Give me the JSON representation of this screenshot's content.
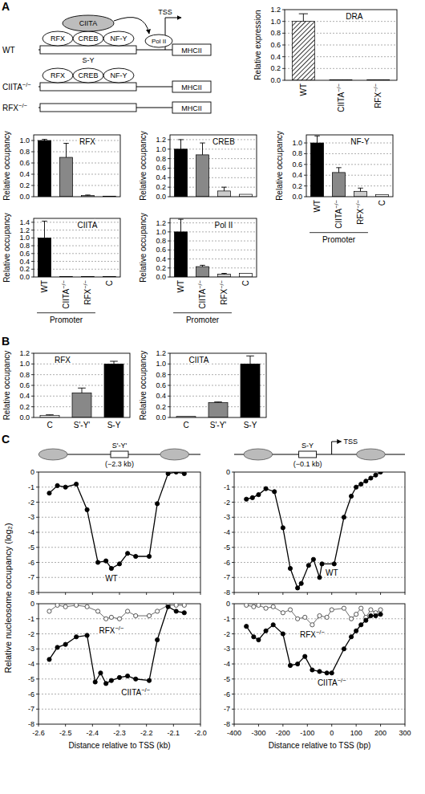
{
  "panel_labels": [
    "A",
    "B",
    "C"
  ],
  "diagram_a": {
    "rows": [
      {
        "label": "WT",
        "factors": [
          "RFX",
          "CREB",
          "NF-Y"
        ],
        "coactivator": "CIITA",
        "polymerase": "Pol II",
        "tss": "TSS",
        "element": "S-Y",
        "gene": "MHCII"
      },
      {
        "label": "CIITA−/−",
        "factors": [
          "RFX",
          "CREB",
          "NF-Y"
        ],
        "gene": "MHCII"
      },
      {
        "label": "RFX−/−",
        "gene": "MHCII"
      }
    ]
  },
  "diagram_c": [
    {
      "element": "S'-Y'",
      "position": "(−2.3 kb)"
    },
    {
      "element": "S-Y",
      "position": "(−0.1 kb)",
      "tss": "TSS"
    }
  ],
  "chart_data": [
    {
      "type": "bar",
      "title": "DRA",
      "ylabel": "Relative expression",
      "categories": [
        "WT",
        "CIITA−/−",
        "RFX−/−"
      ],
      "values": [
        1.0,
        0.01,
        0.01
      ],
      "errors": [
        0.13,
        null,
        null
      ],
      "colors": [
        "#000000",
        "#000000",
        "#000000"
      ],
      "ylim": [
        0,
        1.2
      ],
      "yticks": [
        {
          "value": 0,
          "label": "0.0"
        },
        0.2,
        0.4,
        0.6,
        0.8,
        {
          "value": 1,
          "label": "1.0"
        },
        1.2
      ],
      "grid": true
    },
    {
      "type": "bar",
      "title": "RFX",
      "ylabel": "Relative occupancy",
      "categories": [
        "WT",
        "CIITA−/−",
        "RFX−/−",
        "C"
      ],
      "values": [
        1.0,
        0.7,
        0.02,
        0.01
      ],
      "errors": [
        0.02,
        0.25,
        0.01,
        null
      ],
      "colors": [
        "#000000",
        "#888888",
        "#cccccc",
        "#ffffff"
      ],
      "ylim": [
        0,
        1.1
      ],
      "yticks": [
        {
          "value": 0,
          "label": "0.0"
        },
        0.2,
        0.4,
        0.6,
        0.8,
        {
          "value": 1,
          "label": "1.0"
        }
      ],
      "grid": true,
      "tick_labels": "y"
    },
    {
      "type": "bar",
      "title": "CREB",
      "ylabel": "Relative occupancy",
      "categories": [
        "WT",
        "CIITA−/−",
        "RFX−/−",
        "C"
      ],
      "values": [
        1.0,
        0.88,
        0.12,
        0.05
      ],
      "errors": [
        0.2,
        0.25,
        0.08,
        null
      ],
      "colors": [
        "#000000",
        "#888888",
        "#cccccc",
        "#ffffff"
      ],
      "ylim": [
        0,
        1.3
      ],
      "yticks": [
        {
          "value": 0,
          "label": "0.0"
        },
        0.2,
        0.4,
        0.6,
        0.8,
        {
          "value": 1,
          "label": "1.0"
        },
        1.2
      ],
      "grid": true,
      "tick_labels": "y"
    },
    {
      "type": "bar",
      "title": "NF-Y",
      "ylabel": "Relative occupancy",
      "xlabel": "Promoter",
      "categories": [
        "WT",
        "CIITA−/−",
        "RFX−/−",
        "C"
      ],
      "values": [
        1.0,
        0.45,
        0.1,
        0.04
      ],
      "errors": [
        0.13,
        0.09,
        0.06,
        null
      ],
      "colors": [
        "#000000",
        "#888888",
        "#cccccc",
        "#ffffff"
      ],
      "ylim": [
        0,
        1.15
      ],
      "yticks": [
        {
          "value": 0,
          "label": "0.0"
        },
        0.2,
        0.4,
        0.6,
        0.8,
        {
          "value": 1,
          "label": "1.0"
        }
      ],
      "grid": true
    },
    {
      "type": "bar",
      "title": "CIITA",
      "ylabel": "Relative occupancy",
      "xlabel": "Promoter",
      "categories": [
        "WT",
        "CIITA−/−",
        "RFX−/−",
        "C"
      ],
      "values": [
        1.0,
        0.01,
        0.01,
        0.01
      ],
      "errors": [
        0.43,
        null,
        null,
        null
      ],
      "colors": [
        "#000000",
        "#888888",
        "#cccccc",
        "#ffffff"
      ],
      "ylim": [
        0,
        1.5
      ],
      "yticks": [
        {
          "value": 0,
          "label": "0.0"
        },
        0.2,
        0.4,
        0.6,
        0.8,
        {
          "value": 1,
          "label": "1.0"
        },
        1.2,
        1.4
      ],
      "grid": true
    },
    {
      "type": "bar",
      "title": "Pol II",
      "ylabel": "Relative occupancy",
      "xlabel": "Promoter",
      "categories": [
        "WT",
        "CIITA−/−",
        "RFX−/−",
        "C"
      ],
      "values": [
        1.0,
        0.23,
        0.06,
        0.08
      ],
      "errors": [
        0.28,
        0.03,
        0.02,
        null
      ],
      "colors": [
        "#000000",
        "#888888",
        "#cccccc",
        "#ffffff"
      ],
      "ylim": [
        0,
        1.3
      ],
      "yticks": [
        {
          "value": 0,
          "label": "0.0"
        },
        0.2,
        0.4,
        0.6,
        0.8,
        {
          "value": 1,
          "label": "1.0"
        },
        1.2
      ],
      "grid": true
    },
    {
      "type": "bar",
      "title": "RFX",
      "ylabel": "Relative occupancy",
      "categories": [
        "C",
        "S'-Y'",
        "S-Y"
      ],
      "values": [
        0.04,
        0.46,
        1.0
      ],
      "errors": [
        0.01,
        0.09,
        0.05
      ],
      "colors": [
        "#ffffff",
        "#888888",
        "#000000"
      ],
      "ylim": [
        0,
        1.2
      ],
      "yticks": [
        {
          "value": 0,
          "label": "0.0"
        },
        0.2,
        0.4,
        0.6,
        0.8,
        {
          "value": 1,
          "label": "1.0"
        },
        1.2
      ],
      "grid": true
    },
    {
      "type": "bar",
      "title": "CIITA",
      "ylabel": "Relative occupancy",
      "categories": [
        "C",
        "S'-Y'",
        "S-Y"
      ],
      "values": [
        0.02,
        0.28,
        1.0
      ],
      "errors": [
        null,
        0.01,
        0.15
      ],
      "colors": [
        "#ffffff",
        "#888888",
        "#000000"
      ],
      "ylim": [
        0,
        1.2
      ],
      "yticks": [
        {
          "value": 0,
          "label": "0.0"
        },
        0.2,
        0.4,
        0.6,
        0.8,
        {
          "value": 1,
          "label": "1.0"
        },
        1.2
      ],
      "grid": true
    },
    {
      "type": "line",
      "ylabel": "Relative nucleosome occupancy (log₂)",
      "xlim": [
        -2.6,
        -2.0
      ],
      "xticks": [
        -2.6,
        -2.5,
        -2.4,
        -2.3,
        -2.2,
        -2.1,
        {
          "value": -2,
          "label": "-2.0"
        }
      ],
      "ylim": [
        -8,
        0
      ],
      "yticks": [
        -8,
        -7,
        -6,
        -5,
        -4,
        -3,
        -2,
        -1,
        0
      ],
      "grid": true,
      "tick_labels": "y",
      "series": [
        {
          "name": "WT",
          "color": "#000000",
          "marker": "filled",
          "x": [
            -2.56,
            -2.53,
            -2.5,
            -2.46,
            -2.42,
            -2.38,
            -2.35,
            -2.33,
            -2.3,
            -2.27,
            -2.24,
            -2.19,
            -2.16,
            -2.12,
            -2.09,
            -2.06
          ],
          "values": [
            -1.4,
            -0.9,
            -1.0,
            -0.8,
            -2.5,
            -6.0,
            -5.9,
            -6.4,
            -6.1,
            -5.4,
            -5.6,
            -5.6,
            -2.1,
            -0.1,
            0,
            -0.1
          ]
        }
      ]
    },
    {
      "type": "line",
      "xlim": [
        -400,
        300
      ],
      "xticks": [
        -400,
        -300,
        -200,
        -100,
        0,
        100,
        200,
        300
      ],
      "ylim": [
        -8,
        0
      ],
      "yticks": [
        -8,
        -7,
        -6,
        -5,
        -4,
        -3,
        -2,
        -1,
        0
      ],
      "grid": true,
      "tick_labels": "y",
      "series": [
        {
          "name": "WT",
          "color": "#000000",
          "marker": "filled",
          "x": [
            -350,
            -325,
            -300,
            -270,
            -235,
            -200,
            -170,
            -140,
            -125,
            -95,
            -75,
            -50,
            -40,
            10,
            50,
            80,
            100,
            120,
            140,
            160,
            180,
            200
          ],
          "values": [
            -1.8,
            -1.7,
            -1.5,
            -1.1,
            -1.3,
            -3.7,
            -6.4,
            -7.7,
            -7.4,
            -6.2,
            -5.8,
            -7.0,
            -6.1,
            -6.1,
            -3.0,
            -1.6,
            -1.0,
            -0.8,
            -0.6,
            -0.4,
            -0.2,
            0
          ]
        }
      ]
    },
    {
      "type": "line",
      "xlabel": "Distance relative to TSS (kb)",
      "xlim": [
        -2.6,
        -2.0
      ],
      "xticks": [
        -2.6,
        -2.5,
        -2.4,
        -2.3,
        -2.2,
        -2.1,
        {
          "value": -2,
          "label": "-2.0"
        }
      ],
      "ylim": [
        -8,
        0
      ],
      "yticks": [
        -8,
        -7,
        -6,
        -5,
        -4,
        -3,
        -2,
        -1,
        0
      ],
      "grid": true,
      "series": [
        {
          "name": "RFX−/−",
          "color": "#444444",
          "marker": "open",
          "x": [
            -2.56,
            -2.53,
            -2.5,
            -2.46,
            -2.42,
            -2.38,
            -2.35,
            -2.33,
            -2.3,
            -2.27,
            -2.24,
            -2.19,
            -2.16,
            -2.12,
            -2.09,
            -2.06
          ],
          "values": [
            -0.5,
            -0.1,
            -0.2,
            -0.1,
            -0.2,
            -0.5,
            -1.0,
            -0.9,
            -1.0,
            -0.5,
            -0.8,
            -0.8,
            -0.5,
            -0.1,
            -0.1,
            -0.1
          ]
        },
        {
          "name": "CIITA−/−",
          "color": "#000000",
          "marker": "filled",
          "x": [
            -2.56,
            -2.53,
            -2.5,
            -2.46,
            -2.42,
            -2.39,
            -2.37,
            -2.35,
            -2.33,
            -2.3,
            -2.27,
            -2.24,
            -2.19,
            -2.16,
            -2.12,
            -2.09,
            -2.06
          ],
          "values": [
            -3.7,
            -2.9,
            -2.7,
            -2.2,
            -2.1,
            -5.2,
            -4.6,
            -5.3,
            -5.1,
            -4.9,
            -4.8,
            -5.0,
            -5.1,
            -2.4,
            -0.2,
            -0.5,
            -0.6
          ]
        }
      ]
    },
    {
      "type": "line",
      "xlabel": "Distance relative to TSS (bp)",
      "xlim": [
        -400,
        300
      ],
      "xticks": [
        -400,
        -300,
        -200,
        -100,
        0,
        100,
        200,
        300
      ],
      "ylim": [
        -8,
        0
      ],
      "yticks": [
        -8,
        -7,
        -6,
        -5,
        -4,
        -3,
        -2,
        -1,
        0
      ],
      "grid": true,
      "series": [
        {
          "name": "RFX−/−",
          "color": "#444444",
          "marker": "open",
          "x": [
            -350,
            -320,
            -300,
            -270,
            -240,
            -200,
            -170,
            -140,
            -110,
            -80,
            -50,
            -20,
            0,
            50,
            80,
            100,
            120,
            140,
            160,
            180,
            200
          ],
          "values": [
            -0.1,
            -0.2,
            -0.1,
            -0.3,
            -0.2,
            -0.6,
            -0.4,
            -1.0,
            -0.9,
            -1.4,
            -0.8,
            -0.9,
            -0.4,
            -0.3,
            -1.0,
            -0.7,
            -0.3,
            -0.9,
            -0.4,
            -0.6,
            -0.4
          ]
        },
        {
          "name": "CIITA−/−",
          "color": "#000000",
          "marker": "filled",
          "x": [
            -350,
            -320,
            -300,
            -270,
            -240,
            -200,
            -170,
            -140,
            -110,
            -80,
            -50,
            -20,
            0,
            50,
            80,
            100,
            120,
            140,
            160,
            180,
            200
          ],
          "values": [
            -1.5,
            -2.2,
            -2.4,
            -1.8,
            -1.4,
            -2.0,
            -4.1,
            -4.0,
            -3.5,
            -4.4,
            -4.5,
            -4.6,
            -4.6,
            -3.0,
            -2.2,
            -1.8,
            -1.4,
            -1.1,
            -0.8,
            -0.8,
            -0.7
          ]
        }
      ]
    }
  ]
}
